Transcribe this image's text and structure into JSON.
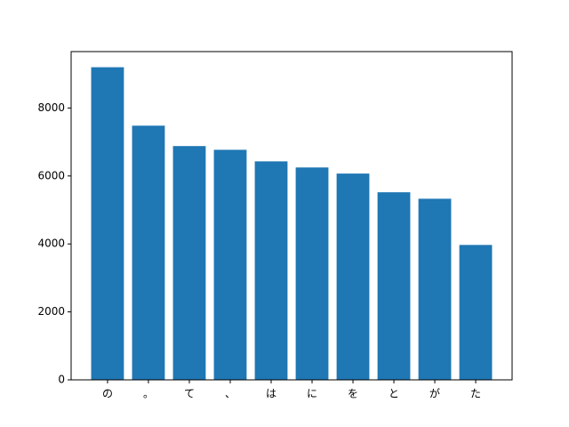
{
  "chart_data": {
    "type": "bar",
    "categories": [
      "の",
      "。",
      "て",
      "、",
      "は",
      "に",
      "を",
      "と",
      "が",
      "た"
    ],
    "values": [
      9200,
      7480,
      6880,
      6770,
      6430,
      6250,
      6070,
      5520,
      5330,
      3970
    ],
    "color": "#1f77b4",
    "ylim": [
      0,
      9660
    ],
    "yticks": [
      0,
      2000,
      4000,
      6000,
      8000
    ],
    "grid": false
  }
}
